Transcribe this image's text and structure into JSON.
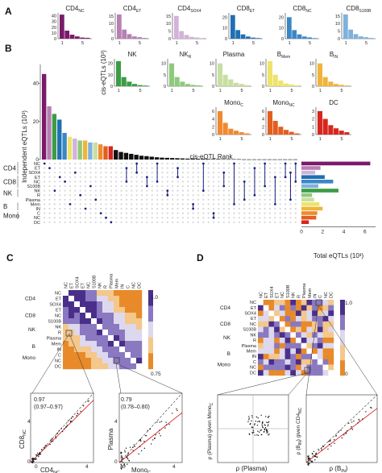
{
  "colors": {
    "CD4_NC": "#7b1a6a",
    "CD4_ET": "#b77fb3",
    "CD4_SOX4": "#d2b3d8",
    "CD8_ET": "#1f6fb4",
    "CD8_NC": "#3b87c6",
    "CD8_S100B": "#7fb1dc",
    "NK": "#3b9c45",
    "NK_R": "#8ec97c",
    "Plasma": "#c7dfa0",
    "B_Mem": "#eee36a",
    "B_IN": "#f0b43a",
    "Mono_C": "#ef8a2e",
    "Mono_NC": "#e25f20",
    "DC": "#d7261f",
    "accent_line": "#1a237e",
    "heat_high": "#4a2f8a",
    "heat_low": "#e88a2a"
  },
  "panels": {
    "A": {
      "letter": "A",
      "x_ticks": [
        "1",
        "5"
      ],
      "facets": [
        {
          "name": "CD4",
          "sub": "NC",
          "key": "CD4_NC",
          "y_ticks": [
            "0",
            "10",
            "20",
            "30",
            "40"
          ],
          "ymax": 45,
          "values": [
            42,
            14,
            7,
            4,
            2,
            1.5
          ]
        },
        {
          "name": "CD4",
          "sub": "ET",
          "key": "CD4_ET",
          "y_ticks": [
            "0",
            "5",
            "10",
            "15"
          ],
          "ymax": 17,
          "values": [
            16,
            6,
            3,
            1.5,
            1,
            0.5
          ]
        },
        {
          "name": "CD4",
          "sub": "SOX4",
          "key": "CD4_SOX4",
          "y_ticks": [
            "0",
            "5",
            "10",
            "15"
          ],
          "ymax": 17,
          "values": [
            15,
            5,
            2.5,
            1.2,
            0.8,
            0.4
          ]
        },
        {
          "name": "CD8",
          "sub": "ET",
          "key": "CD8_ET",
          "y_ticks": [
            "0",
            "10",
            "20"
          ],
          "ymax": 24,
          "values": [
            22,
            8,
            4,
            2,
            1,
            0.6
          ]
        },
        {
          "name": "CD8",
          "sub": "NC",
          "key": "CD8_NC",
          "y_ticks": [
            "0",
            "10",
            "20"
          ],
          "ymax": 24,
          "values": [
            20,
            8,
            4,
            2,
            1.2,
            0.5
          ]
        },
        {
          "name": "CD8",
          "sub": "S100B",
          "key": "CD8_S100B",
          "y_ticks": [
            "0",
            "5",
            "10",
            "15"
          ],
          "ymax": 17,
          "values": [
            16,
            6,
            3,
            1.5,
            1,
            0.5
          ]
        }
      ]
    },
    "B": {
      "letter": "B",
      "y_title": "Independent eQTLs (10³)",
      "y_ticks": [
        "0",
        "20",
        "40"
      ],
      "ymax": 50,
      "bar_values": [
        45,
        28,
        24,
        21,
        14,
        12,
        11,
        10,
        10,
        9,
        9,
        8,
        7,
        7,
        5,
        4,
        3.5,
        3,
        2.5,
        2,
        1.8,
        1.5,
        1.2,
        1,
        0.9,
        0.8,
        0.7,
        0.6,
        0.5,
        0.5,
        0.4,
        0.4,
        0.3,
        0.3,
        0.3,
        0.2,
        0.2,
        0.2,
        0.2,
        0.1,
        0.1,
        0.1,
        0.1,
        0.1,
        0.1,
        0.1,
        0.1,
        0.1,
        0.1,
        0.1
      ],
      "bar_keys": [
        "CD4_NC",
        "CD4_ET",
        "NK",
        "CD8_ET",
        "CD8_NC",
        "B_Mem",
        "CD4_SOX4",
        "NK_R",
        "B_IN",
        "CD8_S100B",
        "Plasma",
        "Mono_C",
        "Mono_NC",
        "DC"
      ],
      "row_groups": [
        {
          "group": "CD4",
          "rows": [
            "NC",
            "ET",
            "SOX4"
          ]
        },
        {
          "group": "CD8",
          "rows": [
            "ET",
            "NC",
            "S100B"
          ]
        },
        {
          "group": "NK",
          "rows": [
            "NK",
            "R"
          ]
        },
        {
          "group": "",
          "rows": [
            "Plasma"
          ]
        },
        {
          "group": "B",
          "rows": [
            "Mem",
            "IN"
          ]
        },
        {
          "group": "Mono",
          "rows": [
            "C",
            "NC"
          ]
        },
        {
          "group": "",
          "rows": [
            "DC"
          ]
        }
      ],
      "row_labels": [
        "NC",
        "ET",
        "SOX4",
        "ET",
        "NC",
        "S100B",
        "NK",
        "R",
        "Plasma",
        "Mem",
        "IN",
        "C",
        "NC",
        "DC"
      ],
      "row_keys": [
        "CD4_NC",
        "CD4_ET",
        "CD4_SOX4",
        "CD8_ET",
        "CD8_NC",
        "CD8_S100B",
        "NK",
        "NK_R",
        "Plasma",
        "B_Mem",
        "B_IN",
        "Mono_C",
        "Mono_NC",
        "DC"
      ],
      "total_values": [
        6.5,
        1.8,
        1.3,
        2.2,
        3.0,
        1.6,
        3.5,
        1.0,
        1.2,
        1.7,
        2.0,
        1.5,
        1.4,
        0.7
      ],
      "total_xlabel": "Total eQTLs (10³)",
      "total_ticks": [
        "0",
        "2",
        "4",
        "6"
      ],
      "total_max": 7,
      "rank_facets": [
        {
          "name": "NK",
          "sub": "",
          "key": "NK",
          "y_ticks": [
            "0",
            "10",
            "20"
          ],
          "ymax": 24,
          "values": [
            22,
            8,
            4,
            2,
            1,
            0.6
          ]
        },
        {
          "name": "NK",
          "sub": "R",
          "key": "NK_R",
          "y_ticks": [
            "0",
            "5",
            "10"
          ],
          "ymax": 12,
          "values": [
            10,
            4,
            2,
            1,
            0.6,
            0.4
          ]
        },
        {
          "name": "Plasma",
          "sub": "",
          "key": "Plasma",
          "y_ticks": [
            "0",
            "5",
            "10"
          ],
          "ymax": 12,
          "values": [
            10,
            5,
            3,
            1.5,
            1,
            0.5
          ]
        },
        {
          "name": "B",
          "sub": "Mem",
          "key": "B_Mem",
          "y_ticks": [
            "0",
            "5",
            "10"
          ],
          "ymax": 12,
          "values": [
            11,
            5,
            2.5,
            1.2,
            0.8,
            0.4
          ]
        },
        {
          "name": "B",
          "sub": "IN",
          "key": "B_IN",
          "y_ticks": [
            "0",
            "5",
            "10"
          ],
          "ymax": 12,
          "values": [
            10,
            4,
            2,
            1,
            0.6,
            0.3
          ]
        },
        {
          "name": "Mono",
          "sub": "C",
          "key": "Mono_C",
          "y_ticks": [
            "0",
            "2",
            "4",
            "6"
          ],
          "ymax": 7,
          "values": [
            6,
            3,
            1.5,
            1,
            0.6,
            0.3
          ]
        },
        {
          "name": "Mono",
          "sub": "NC",
          "key": "Mono_NC",
          "y_ticks": [
            "0",
            "2",
            "4",
            "6"
          ],
          "ymax": 7,
          "values": [
            6,
            3.5,
            2,
            1.2,
            0.7,
            0.3
          ]
        },
        {
          "name": "DC",
          "sub": "",
          "key": "DC",
          "y_ticks": [
            "0",
            "1",
            "2",
            "3"
          ],
          "ymax": 3.5,
          "values": [
            3,
            2,
            1.2,
            0.8,
            0.5,
            0.3
          ]
        }
      ],
      "rank_ylabel": "cis-eQTLs (10³)",
      "rank_xlabel": "cis-eQTL Rank",
      "rank_x_ticks": [
        "1",
        "5"
      ]
    },
    "C": {
      "letter": "C",
      "legend_max": "1.0",
      "legend_min": "0.75",
      "scatter_left": {
        "r": "0.97",
        "ci": "(0.97–0.97)",
        "xlabel": "CD4",
        "xsub": "NC",
        "ylabel": "CD8",
        "ysub": "NC",
        "ticks": [
          "0",
          "4"
        ]
      },
      "scatter_right": {
        "r": "0.79",
        "ci": "(0.78–0.80)",
        "xlabel": "Mono",
        "xsub": "C",
        "ylabel": "Plasma",
        "ysub": "",
        "ticks": [
          "0",
          "4"
        ]
      }
    },
    "D": {
      "letter": "D",
      "legend_max": "1.0",
      "legend_min": "0",
      "scatter_left": {
        "xlabel": "ρ (Plasma)",
        "ylabel": "ρ (Plasma) given Mono",
        "ysub": "C"
      },
      "scatter_right": {
        "xlabel": "ρ (B",
        "xsub": "IN",
        "ylabel": "ρ (B",
        "ysub": "IN",
        "ylabel_suffix": ") given CD4",
        "ysub2": "NC"
      }
    },
    "heat_labels": [
      "NC",
      "ET",
      "SOX4",
      "ET",
      "NC",
      "S100B",
      "NK",
      "R",
      "Plasma",
      "Mem",
      "IN",
      "C",
      "NC",
      "DC"
    ],
    "heat_groups": [
      "CD4",
      "CD8",
      "NK",
      "B",
      "Mono"
    ]
  }
}
